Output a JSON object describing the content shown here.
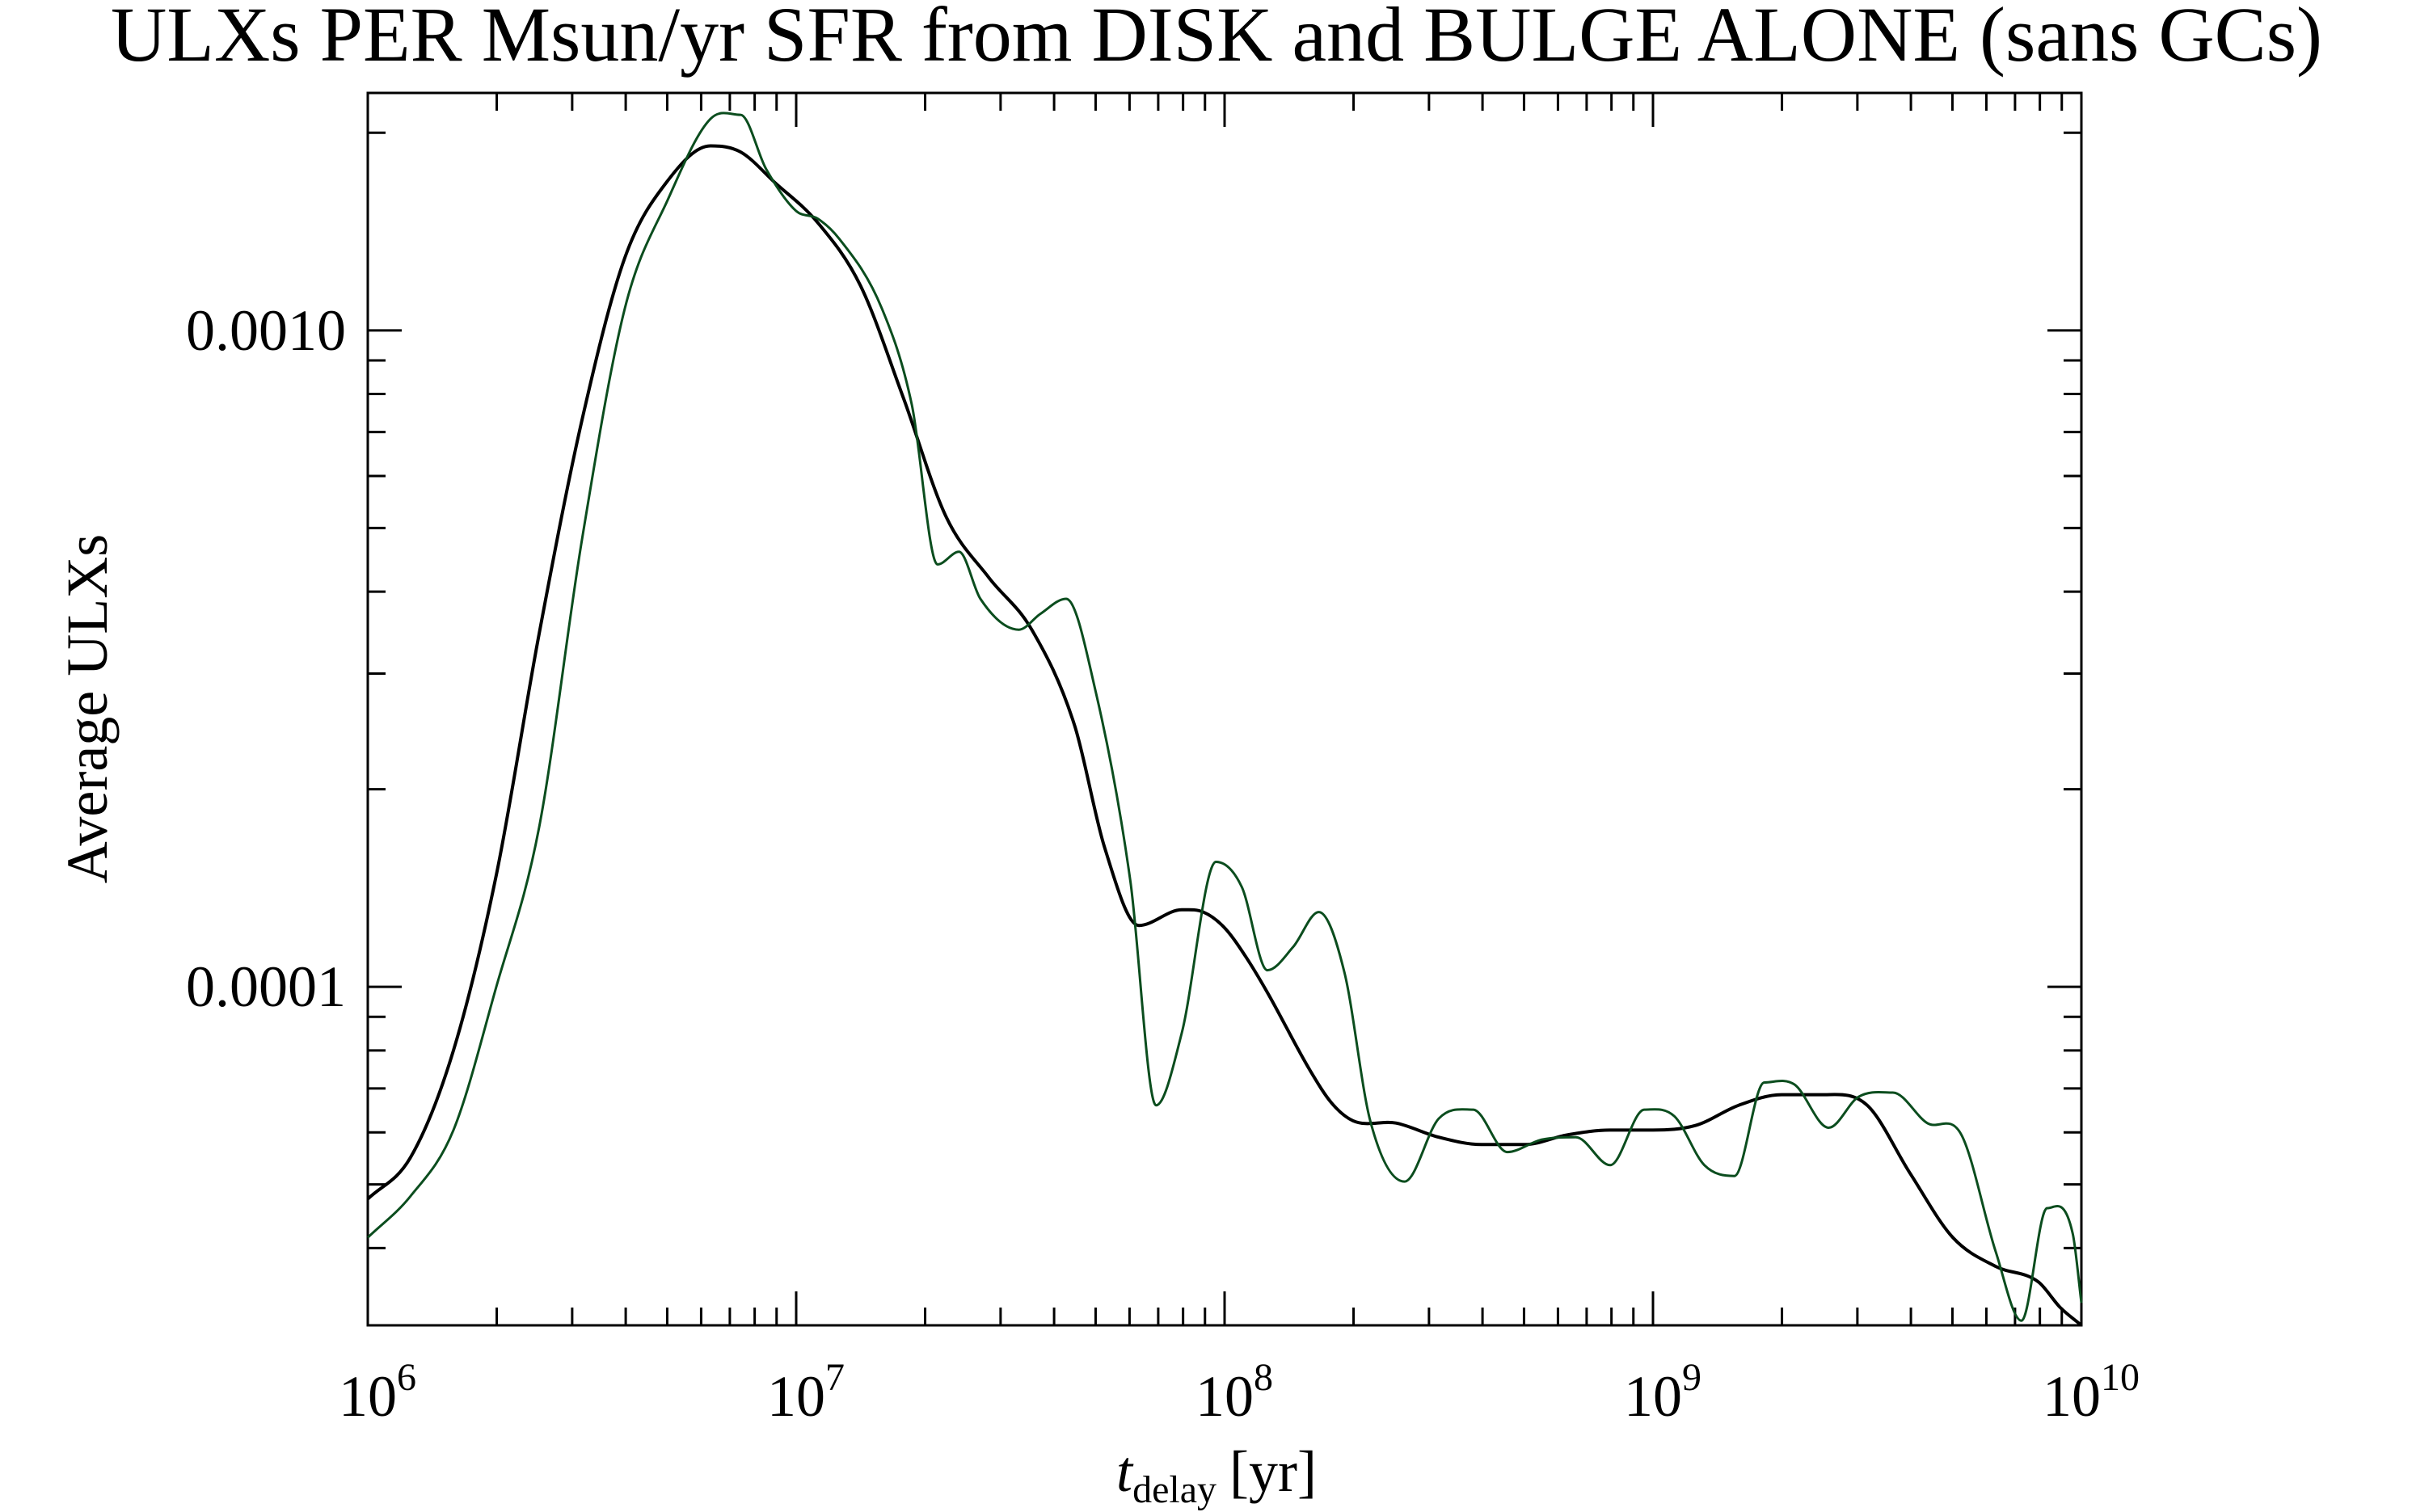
{
  "chart_data": {
    "type": "line",
    "title": "ULXs PER Msun/yr SFR from DISK and BULGE ALONE (sans GCs)",
    "xlabel": {
      "symbol": "t",
      "subscript": "delay",
      "unit": "[yr]"
    },
    "ylabel": "Average ULXs",
    "xscale": "log",
    "yscale": "log",
    "xlim": [
      1000000,
      10000000000
    ],
    "ylim": [
      3.05e-05,
      0.0023
    ],
    "x_ticks": [
      {
        "value": 1000000,
        "base": "10",
        "exp": "6"
      },
      {
        "value": 10000000,
        "base": "10",
        "exp": "7"
      },
      {
        "value": 100000000,
        "base": "10",
        "exp": "8"
      },
      {
        "value": 1000000000,
        "base": "10",
        "exp": "9"
      },
      {
        "value": 10000000000,
        "base": "10",
        "exp": "10"
      }
    ],
    "y_ticks": [
      {
        "value": 0.001,
        "label": "0.0010"
      },
      {
        "value": 0.0001,
        "label": "0.0001"
      }
    ],
    "grid": false,
    "legend": "none",
    "series": [
      {
        "color": "#000000",
        "log10_x": [
          6.0,
          6.1,
          6.2,
          6.3,
          6.4,
          6.5,
          6.6,
          6.7,
          6.8,
          6.87,
          6.95,
          7.05,
          7.15,
          7.25,
          7.35,
          7.45,
          7.55,
          7.65,
          7.72,
          7.8,
          7.9,
          7.95,
          8.0,
          8.05,
          8.1,
          8.2,
          8.25,
          8.3,
          8.4,
          8.5,
          8.6,
          8.7,
          8.8,
          8.9,
          9.0,
          9.1,
          9.2,
          9.3,
          9.4,
          9.5,
          9.6,
          9.7,
          9.8,
          9.9,
          9.95,
          10.0
        ],
        "y": [
          4.75e-05,
          5.5e-05,
          8e-05,
          0.000148,
          0.000345,
          0.00073,
          0.00129,
          0.00169,
          0.00191,
          0.00187,
          0.00168,
          0.00146,
          0.00117,
          0.00079,
          0.00052,
          0.00042,
          0.00035,
          0.00025,
          0.000163,
          0.000124,
          0.000131,
          0.00013,
          0.000123,
          0.000111,
          9.8e-05,
          7.45e-05,
          6.65e-05,
          6.25e-05,
          6.2e-05,
          5.9e-05,
          5.75e-05,
          5.75e-05,
          5.95e-05,
          6.05e-05,
          6.05e-05,
          6.15e-05,
          6.6e-05,
          6.85e-05,
          6.85e-05,
          6.6e-05,
          5.2e-05,
          4.15e-05,
          3.75e-05,
          3.55e-05,
          3.25e-05,
          3.05e-05
        ]
      },
      {
        "color": "#0b4d1e",
        "log10_x": [
          6.0,
          6.1,
          6.2,
          6.3,
          6.4,
          6.5,
          6.6,
          6.7,
          6.8,
          6.87,
          6.93,
          7.0,
          7.05,
          7.1,
          7.2,
          7.27,
          7.33,
          7.38,
          7.43,
          7.52,
          7.57,
          7.63,
          7.7,
          7.78,
          7.84,
          7.9,
          7.98,
          8.04,
          8.1,
          8.16,
          8.22,
          8.28,
          8.34,
          8.42,
          8.5,
          8.58,
          8.66,
          8.74,
          8.82,
          8.9,
          8.98,
          9.05,
          9.12,
          9.19,
          9.26,
          9.33,
          9.41,
          9.48,
          9.56,
          9.64,
          9.72,
          9.8,
          9.86,
          9.92,
          9.98,
          10.0
        ],
        "y": [
          4.15e-05,
          4.8e-05,
          6.05e-05,
          0.0001,
          0.000175,
          0.00048,
          0.00108,
          0.00158,
          0.0021,
          0.00213,
          0.00176,
          0.00152,
          0.00148,
          0.00138,
          0.00108,
          0.00077,
          0.00044,
          0.00046,
          0.00039,
          0.00035,
          0.00037,
          0.00039,
          0.00028,
          0.000145,
          6.6e-05,
          8.5e-05,
          0.000155,
          0.000142,
          0.000106,
          0.000115,
          0.00013,
          0.000105,
          6.25e-05,
          5.05e-05,
          6.3e-05,
          6.5e-05,
          5.6e-05,
          5.85e-05,
          5.9e-05,
          5.35e-05,
          6.5e-05,
          6.35e-05,
          5.35e-05,
          5.15e-05,
          7.15e-05,
          7.1e-05,
          6.1e-05,
          6.8e-05,
          6.9e-05,
          6.2e-05,
          5.95e-05,
          3.95e-05,
          3.1e-05,
          4.6e-05,
          4.2e-05,
          3.3e-05
        ]
      }
    ]
  }
}
